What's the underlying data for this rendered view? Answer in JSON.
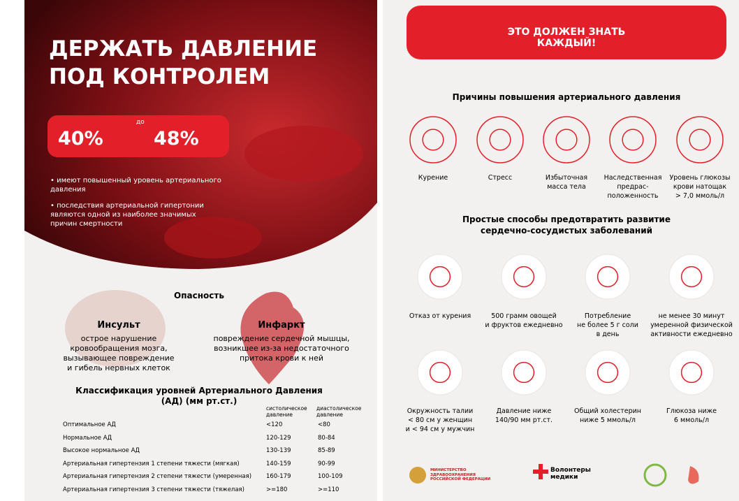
{
  "left": {
    "title": [
      "ДЕРЖАТЬ ДАВЛЕНИЕ",
      "ПОД КОНТРОЛЕМ"
    ],
    "stat": {
      "from": "40%",
      "connector": "до",
      "to": "48%"
    },
    "bullets": [
      "• имеют повышенный уровень артериального\nдавления",
      "• последствия артериальной гипертонии\nявляются одной из наиболее значимых\nпричин смертности"
    ],
    "danger": {
      "heading": "Опасность",
      "items": [
        {
          "title": "Инсульт",
          "text": "острое нарушение\nкровообращения мозга,\nвызывающее повреждение\nи гибель нервных клеток"
        },
        {
          "title": "Инфаркт",
          "text": "повреждение сердечной мышцы,\nвозникшее из-за недостаточного\nпритока крови к ней"
        }
      ]
    },
    "table": {
      "title": "Классификация уровней Артериального Давления\n(АД) (мм рт.ст.)",
      "headers": [
        "систолическое\nдавление",
        "диастолическое\nдавление"
      ],
      "rows": [
        [
          "Оптимальное АД",
          "<120",
          "<80"
        ],
        [
          "Нормальное АД",
          "120-129",
          "80-84"
        ],
        [
          "Высокое нормальное АД",
          "130-139",
          "85-89"
        ],
        [
          "Артериальная гипертензия 1 степени тяжести (мягкая)",
          "140-159",
          "90-99"
        ],
        [
          "Артериальная гипертензия 2 степени тяжести (умеренная)",
          "160-179",
          "100-109"
        ],
        [
          "Артериальная гипертензия 3 степени тяжести (тяжелая)",
          ">=180",
          ">=110"
        ]
      ]
    }
  },
  "right": {
    "banner": "ЭТО ДОЛЖЕН ЗНАТЬ КАЖДЫЙ!",
    "causes": {
      "heading": "Причины повышения артериального давления",
      "items": [
        "Курение",
        "Стресс",
        "Избыточная\nмасса тела",
        "Наследственная\nпредрас-\nположенность",
        "Уровень глюкозы\nкрови натощак\n> 7,0 ммоль/л"
      ]
    },
    "prevention": {
      "heading": "Простые способы предотвратить развитие\nсердечно-сосудистых заболеваний",
      "items": [
        "Отказ от курения",
        "500 грамм овощей\nи фруктов ежедневно",
        "Потребление\nне более 5 г соли\nв день",
        "не менее 30 минут\nумеренной физической\nактивности ежедневно",
        "Окружность талии\n< 80 см у женщин\nи < 94 см у мужчин",
        "Давление ниже\n140/90 мм рт.ст.",
        "Общий холестерин\nниже 5 ммоль/л",
        "Глюкоза ниже\n6 ммоль/л"
      ]
    },
    "logos": [
      "МИНИСТЕРСТВО\nЗДРАВООХРАНЕНИЯ\nРОССИЙСКОЙ ФЕДЕРАЦИИ",
      "Волонтеры\nмедики"
    ]
  }
}
